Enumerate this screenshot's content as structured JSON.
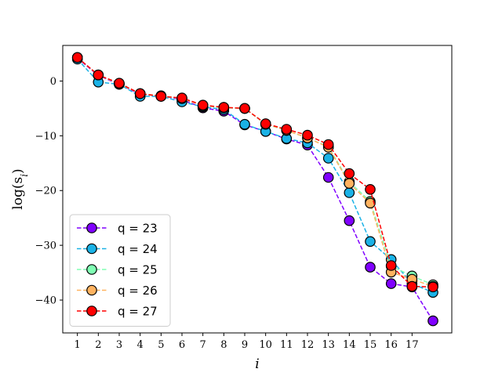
{
  "chart_data": {
    "type": "line",
    "xlabel": "i",
    "ylabel": "log(s_i)",
    "ylabel_display": "log(s",
    "ylabel_sub": "i",
    "ylabel_close": ")",
    "xlim": [
      0.3,
      18.9
    ],
    "ylim": [
      -46,
      6.5
    ],
    "x_ticks": [
      1,
      2,
      3,
      4,
      5,
      6,
      7,
      8,
      9,
      10,
      11,
      12,
      13,
      14,
      15,
      16,
      17
    ],
    "y_ticks": [
      0,
      -10,
      -20,
      -30,
      -40
    ],
    "y_tick_labels": [
      "0",
      "−10",
      "−20",
      "−30",
      "−40"
    ],
    "grid": false,
    "legend_position": "lower-left",
    "x": [
      1,
      2,
      3,
      4,
      5,
      6,
      7,
      8,
      9,
      10,
      11,
      12,
      13,
      14,
      15,
      16,
      17,
      18
    ],
    "series": [
      {
        "name": "q = 23",
        "color": "#8000ff",
        "values": [
          4.2,
          1.0,
          -0.6,
          -2.4,
          -2.7,
          -3.4,
          -4.9,
          -5.5,
          -8.0,
          -9.2,
          -10.6,
          -11.7,
          -17.6,
          -25.5,
          -34.0,
          -37.0,
          -37.6,
          -43.8
        ]
      },
      {
        "name": "q = 24",
        "color": "#1ab2e6",
        "values": [
          4.0,
          -0.2,
          -0.6,
          -2.8,
          -2.8,
          -3.8,
          -4.7,
          -5.2,
          -7.9,
          -9.2,
          -10.5,
          -11.3,
          -14.1,
          -20.4,
          -29.3,
          -32.6,
          -37.0,
          -38.6
        ]
      },
      {
        "name": "q = 25",
        "color": "#80ffb4",
        "values": [
          4.3,
          1.1,
          -0.5,
          -2.3,
          -2.8,
          -3.2,
          -4.5,
          -4.9,
          -5.0,
          -7.9,
          -9.0,
          -10.4,
          -12.0,
          -18.4,
          -22.0,
          -33.8,
          -35.6,
          -37.2
        ]
      },
      {
        "name": "q = 26",
        "color": "#ffb360",
        "values": [
          4.3,
          1.1,
          -0.5,
          -2.3,
          -2.7,
          -3.2,
          -4.5,
          -4.8,
          -5.0,
          -7.8,
          -9.0,
          -10.4,
          -12.1,
          -18.7,
          -22.3,
          -34.9,
          -36.2,
          -37.5
        ]
      },
      {
        "name": "q = 27",
        "color": "#ff0000",
        "values": [
          4.3,
          1.1,
          -0.4,
          -2.3,
          -2.8,
          -3.1,
          -4.4,
          -4.8,
          -5.0,
          -7.8,
          -8.8,
          -9.9,
          -11.6,
          -16.9,
          -19.8,
          -33.7,
          -37.5,
          -37.6
        ]
      }
    ]
  }
}
